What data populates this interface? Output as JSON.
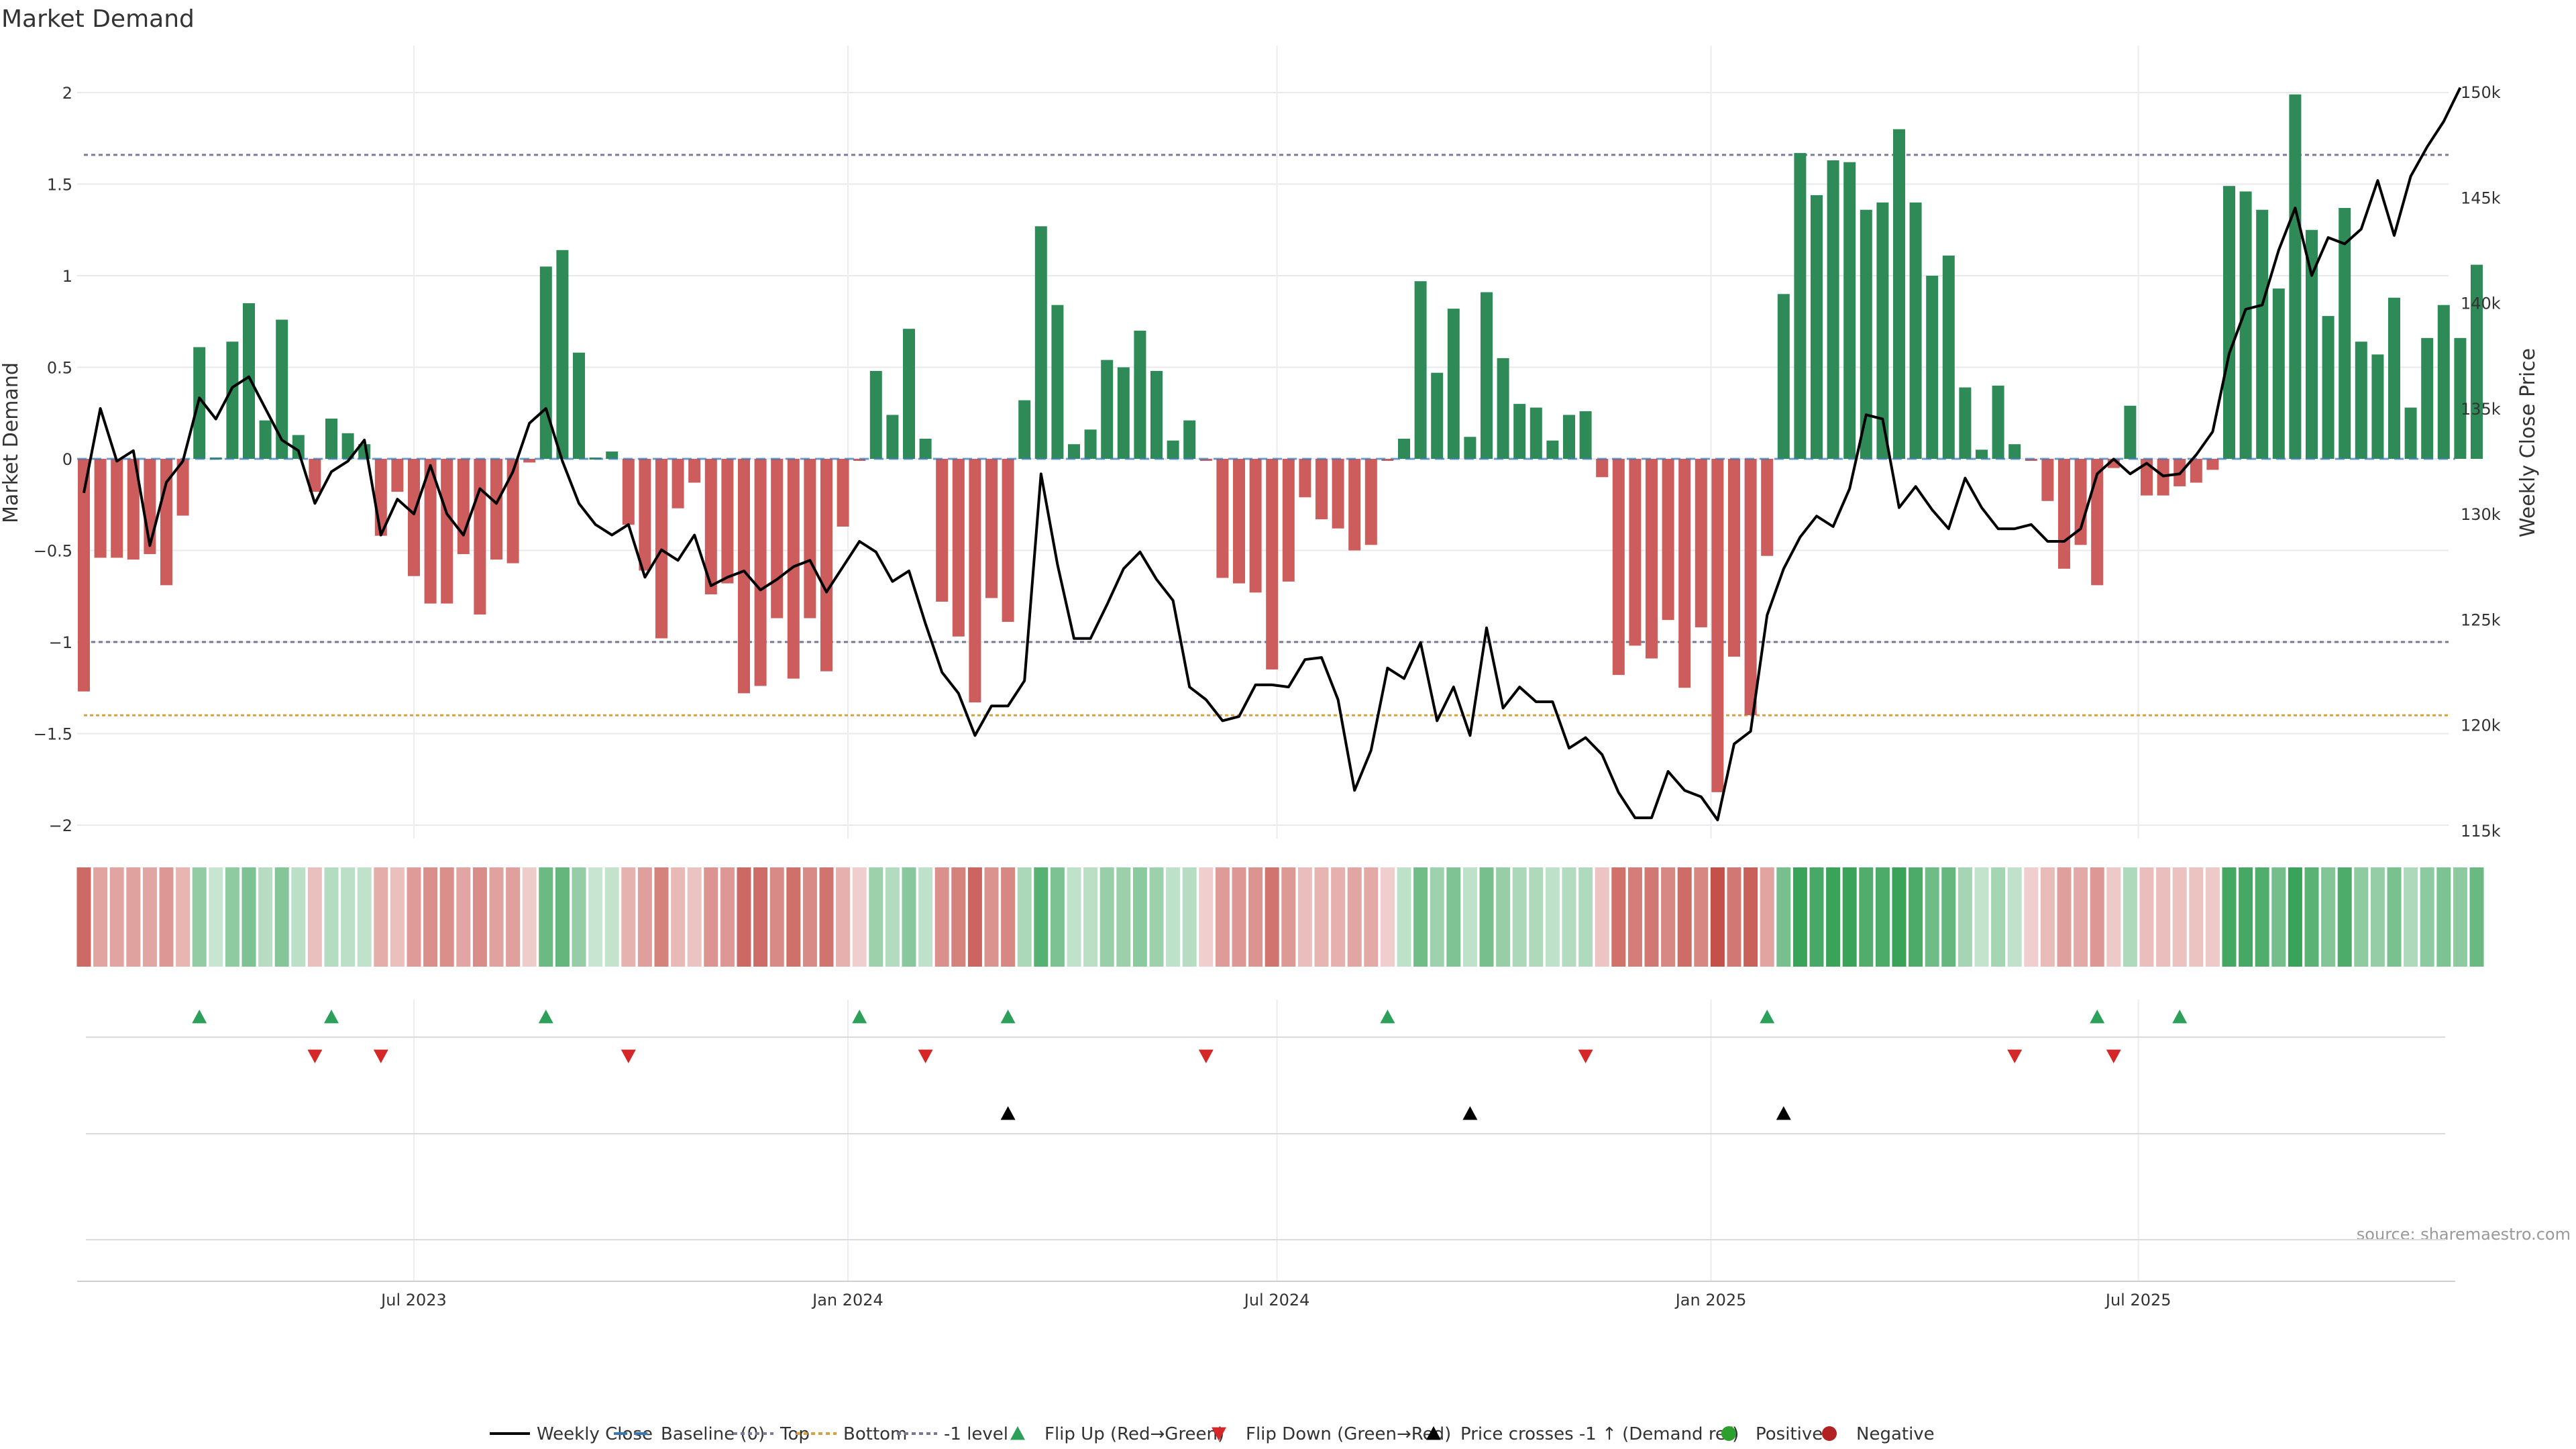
{
  "chart_data": {
    "type": "bar",
    "title": "Market Demand",
    "ylabel": "Market Demand",
    "y2label": "Weekly Close Price",
    "ylim": [
      -2.2,
      2.2
    ],
    "y2lim": [
      112500,
      151000
    ],
    "yticks": [
      {
        "v": 2,
        "label": "2"
      },
      {
        "v": 1.5,
        "label": "1.5"
      },
      {
        "v": 1,
        "label": "1"
      },
      {
        "v": 0.5,
        "label": "0.5"
      },
      {
        "v": 0,
        "label": "0"
      },
      {
        "v": -0.5,
        "label": "−0.5"
      },
      {
        "v": -1,
        "label": "−1"
      },
      {
        "v": -1.5,
        "label": "−1.5"
      },
      {
        "v": -2,
        "label": "−2"
      }
    ],
    "y2ticks": [
      {
        "v": 150000,
        "label": "150k"
      },
      {
        "v": 145000,
        "label": "145k"
      },
      {
        "v": 140000,
        "label": "140k"
      },
      {
        "v": 135000,
        "label": "135k"
      },
      {
        "v": 130000,
        "label": "130k"
      },
      {
        "v": 125000,
        "label": "125k"
      },
      {
        "v": 120000,
        "label": "120k"
      },
      {
        "v": 115000,
        "label": "115k"
      }
    ],
    "xticks": [
      {
        "i": 20,
        "label": "Jul 2023"
      },
      {
        "i": 46.3,
        "label": "Jan 2024"
      },
      {
        "i": 72.3,
        "label": "Jul 2024"
      },
      {
        "i": 98.6,
        "label": "Jan 2025"
      },
      {
        "i": 124.5,
        "label": "Jul 2025"
      }
    ],
    "reference_lines": {
      "top": 1.66,
      "bottom": -1.4,
      "minus_one": -1
    },
    "demand": [
      -1.27,
      -0.54,
      -0.54,
      -0.55,
      -0.52,
      -0.69,
      -0.31,
      0.61,
      0.0,
      0.64,
      0.85,
      0.21,
      0.76,
      0.13,
      -0.18,
      0.22,
      0.14,
      0.08,
      -0.42,
      -0.18,
      -0.64,
      -0.79,
      -0.79,
      -0.52,
      -0.85,
      -0.55,
      -0.57,
      -0.02,
      1.05,
      1.14,
      0.58,
      0.0,
      0.04,
      -0.36,
      -0.61,
      -0.98,
      -0.27,
      -0.13,
      -0.74,
      -0.68,
      -1.28,
      -1.24,
      -0.87,
      -1.2,
      -0.87,
      -1.16,
      -0.37,
      -0.01,
      0.48,
      0.24,
      0.71,
      0.11,
      -0.78,
      -0.97,
      -1.33,
      -0.76,
      -0.89,
      0.32,
      1.27,
      0.84,
      0.08,
      0.16,
      0.54,
      0.5,
      0.7,
      0.48,
      0.1,
      0.21,
      -0.01,
      -0.65,
      -0.68,
      -0.73,
      -1.15,
      -0.67,
      -0.21,
      -0.33,
      -0.38,
      -0.5,
      -0.47,
      -0.01,
      0.11,
      0.97,
      0.47,
      0.82,
      0.12,
      0.91,
      0.55,
      0.3,
      0.28,
      0.1,
      0.24,
      0.26,
      -0.1,
      -1.18,
      -1.02,
      -1.09,
      -0.88,
      -1.25,
      -0.92,
      -1.82,
      -1.08,
      -1.4,
      -0.53,
      0.9,
      1.67,
      1.44,
      1.63,
      1.62,
      1.36,
      1.4,
      1.8,
      1.4,
      1.0,
      1.11,
      0.39,
      0.05,
      0.4,
      0.08,
      -0.01,
      -0.23,
      -0.6,
      -0.47,
      -0.69,
      -0.05,
      0.29,
      -0.2,
      -0.2,
      -0.15,
      -0.13,
      -0.06,
      1.49,
      1.46,
      1.36,
      0.93,
      1.99,
      1.25,
      0.78,
      1.37,
      0.64,
      0.57,
      0.88,
      0.28,
      0.66,
      0.84,
      0.66,
      1.06
    ],
    "close": [
      131,
      135,
      132.5,
      133,
      128.5,
      131.5,
      132.5,
      135.5,
      134.5,
      136,
      136.5,
      135,
      133.5,
      133,
      130.5,
      132,
      132.5,
      133.5,
      129,
      130.7,
      130,
      132.3,
      130,
      129,
      131.2,
      130.5,
      132,
      134.3,
      135,
      132.5,
      130.5,
      129.5,
      129,
      129.5,
      127,
      128.3,
      127.8,
      129,
      126.6,
      127,
      127.3,
      126.4,
      126.9,
      127.5,
      127.8,
      126.3,
      127.5,
      128.7,
      128.2,
      126.8,
      127.3,
      124.8,
      122.5,
      121.5,
      119.5,
      120.9,
      120.9,
      122.1,
      131.9,
      127.6,
      124.1,
      124.1,
      125.7,
      127.4,
      128.2,
      126.9,
      125.9,
      121.8,
      121.2,
      120.2,
      120.4,
      121.9,
      121.9,
      121.8,
      123.1,
      123.2,
      121.2,
      116.9,
      118.8,
      122.7,
      122.2,
      123.9,
      120.2,
      121.8,
      119.5,
      124.6,
      120.8,
      121.8,
      121.1,
      121.1,
      118.9,
      119.4,
      118.6,
      116.8,
      115.6,
      115.6,
      117.8,
      116.9,
      116.6,
      115.5,
      119.1,
      119.7,
      125.2,
      127.4,
      128.9,
      129.9,
      129.4,
      131.2,
      134.7,
      134.5,
      130.3,
      131.3,
      130.2,
      129.3,
      131.7,
      130.3,
      129.3,
      129.3,
      129.5,
      128.7,
      128.7,
      129.3,
      131.9,
      132.6,
      131.9,
      132.4,
      131.8,
      131.9,
      132.8,
      133.9,
      137.6,
      139.7,
      139.9,
      142.5,
      144.5,
      141.3,
      143.1,
      142.8,
      143.5,
      145.8,
      143.2,
      146,
      147.4,
      148.6,
      150.2
    ],
    "flip_up": [
      7,
      15,
      28,
      47,
      56,
      79,
      102,
      122,
      127
    ],
    "flip_down": [
      14,
      18,
      33,
      51,
      68,
      91,
      117,
      123
    ],
    "cross_up": [
      56,
      84,
      103
    ],
    "legend": [
      {
        "kind": "line",
        "label": "Weekly Close"
      },
      {
        "kind": "baseline",
        "label": "Baseline (0)"
      },
      {
        "kind": "top",
        "label": "Top"
      },
      {
        "kind": "bottom",
        "label": "Bottom"
      },
      {
        "kind": "minus1",
        "label": "-1 level"
      },
      {
        "kind": "up",
        "label": "Flip Up (Red→Green)"
      },
      {
        "kind": "down",
        "label": "Flip Down (Green→Red)"
      },
      {
        "kind": "cross",
        "label": "Price crosses -1 ↑ (Demand ref)"
      },
      {
        "kind": "pos",
        "label": "Positive"
      },
      {
        "kind": "neg",
        "label": "Negative"
      }
    ],
    "source": "source: sharemaestro.com"
  },
  "colors": {
    "positive": "#2e8b57",
    "negative": "#cd5c5c",
    "line": "#000000",
    "top": "#7a7a9c",
    "bottom": "#d9a043",
    "minus_one": "#777790",
    "baseline": "#3a78b5",
    "flip_up": "#2ca05a",
    "flip_down": "#d62728",
    "cross": "#000000",
    "pos_dot": "#2ca02c",
    "neg_dot": "#b22222"
  }
}
